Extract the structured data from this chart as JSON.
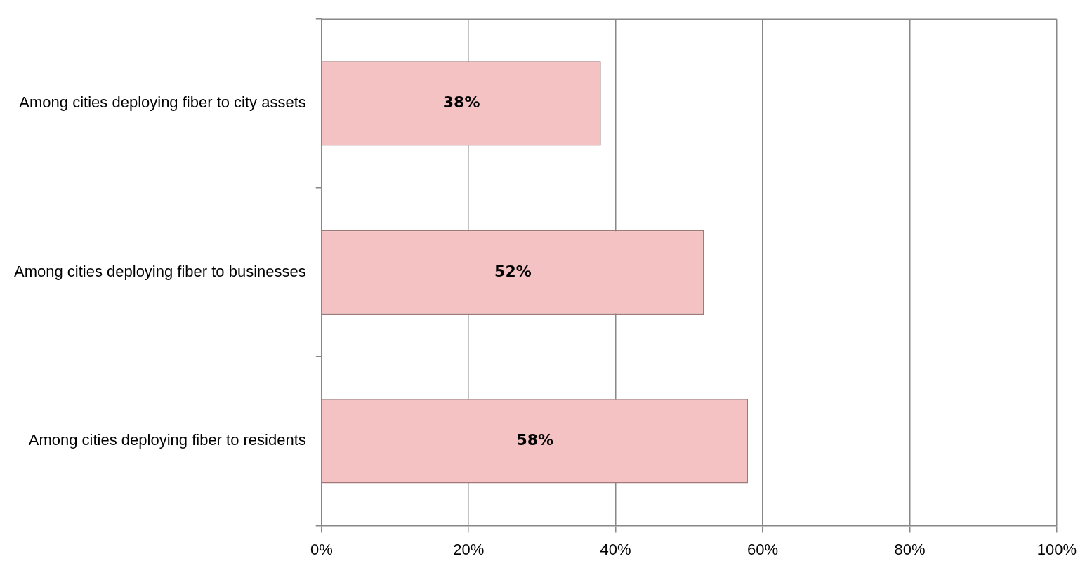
{
  "chart_data": {
    "type": "bar",
    "orientation": "horizontal",
    "categories": [
      "Among cities deploying fiber to city assets",
      "Among cities deploying fiber to businesses",
      "Among cities deploying fiber to residents"
    ],
    "values": [
      38,
      52,
      58
    ],
    "value_labels": [
      "38%",
      "52%",
      "58%"
    ],
    "color": "#f4c2c2",
    "xlim": [
      0,
      100
    ],
    "xticks": [
      {
        "value": 0,
        "label": "0%"
      },
      {
        "value": 20,
        "label": "20%"
      },
      {
        "value": 40,
        "label": "40%"
      },
      {
        "value": 60,
        "label": "60%"
      },
      {
        "value": 80,
        "label": "80%"
      },
      {
        "value": 100,
        "label": "100%"
      }
    ],
    "grid": "x",
    "legend": false
  }
}
